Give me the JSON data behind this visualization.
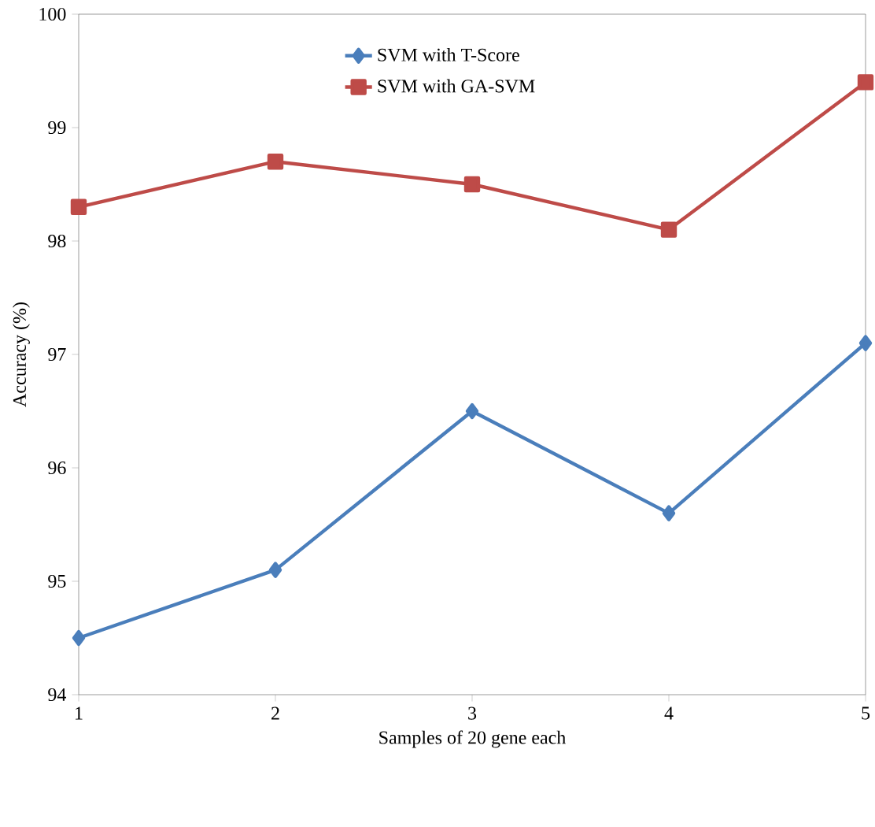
{
  "chart_data": {
    "type": "line",
    "xlabel": "Samples of 20 gene each",
    "ylabel": "Accuracy (%)",
    "x": [
      1,
      2,
      3,
      4,
      5
    ],
    "series": [
      {
        "name": "SVM with T-Score",
        "color": "#4a7ebb",
        "marker": "diamond",
        "values": [
          94.5,
          95.1,
          96.5,
          95.6,
          97.1
        ]
      },
      {
        "name": "SVM with GA-SVM",
        "color": "#be4b48",
        "marker": "square",
        "values": [
          98.3,
          98.7,
          98.5,
          98.1,
          99.4
        ]
      }
    ],
    "xlim": [
      1,
      5
    ],
    "xticks": [
      1,
      2,
      3,
      4,
      5
    ],
    "ylim": [
      94,
      100
    ],
    "yticks": [
      94,
      95,
      96,
      97,
      98,
      99,
      100
    ],
    "legend": "top right",
    "line_style": "solid"
  }
}
